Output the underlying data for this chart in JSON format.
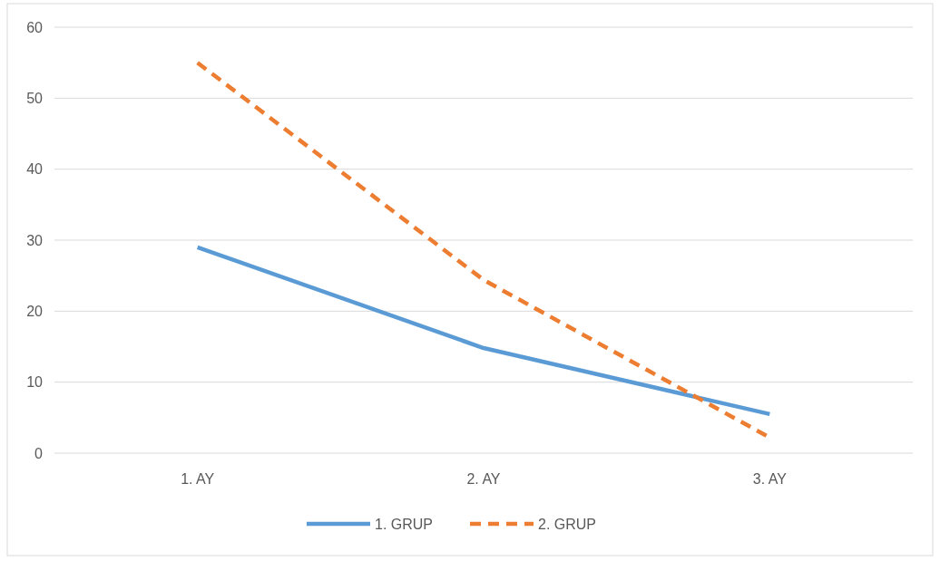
{
  "chart_data": {
    "type": "line",
    "categories": [
      "1. AY",
      "2. AY",
      "3. AY"
    ],
    "series": [
      {
        "name": "1. GRUP",
        "color": "#5b9bd5",
        "values": [
          29,
          14.8,
          5.5
        ],
        "line_style": "solid"
      },
      {
        "name": "2. GRUP",
        "color": "#ed7d31",
        "values": [
          55,
          24.4,
          2.2
        ],
        "line_style": "dashed"
      }
    ],
    "ylim": [
      0,
      60
    ],
    "yticks": [
      0,
      10,
      20,
      30,
      40,
      50,
      60
    ],
    "grid": "y",
    "legend": "bottom",
    "marker": "none"
  }
}
